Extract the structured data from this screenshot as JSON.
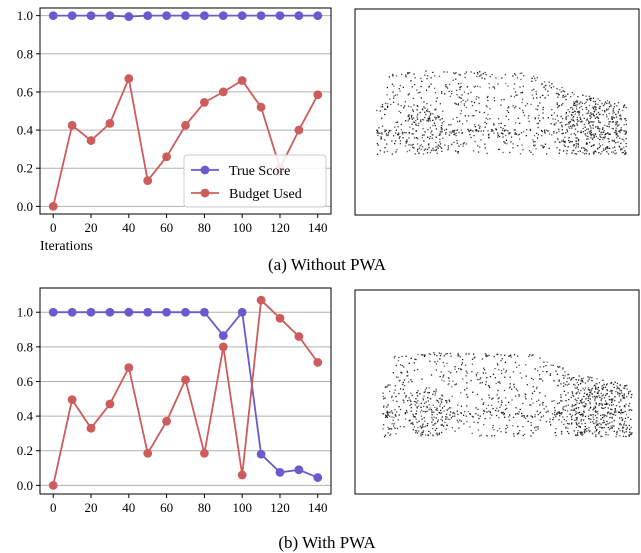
{
  "colors": {
    "true_score": "#6a5acd",
    "budget_used": "#cd5c5c",
    "grid": "#b0b0b0"
  },
  "captions": {
    "a": "(a) Without PWA",
    "b": "(b) With PWA"
  },
  "chart_data": [
    {
      "type": "line",
      "xlabel": "Iterations",
      "ylabel": "",
      "x": [
        0,
        10,
        20,
        30,
        40,
        50,
        60,
        70,
        80,
        90,
        100,
        110,
        120,
        130,
        140
      ],
      "xticks": [
        0,
        20,
        40,
        60,
        80,
        100,
        120,
        140
      ],
      "yticks": [
        0.0,
        0.2,
        0.4,
        0.6,
        0.8,
        1.0
      ],
      "yticklabels": [
        "0.0",
        "0.2",
        "0.4",
        "0.6",
        "0.8",
        "1.0"
      ],
      "xlim": [
        -7,
        147
      ],
      "ylim": [
        -0.04,
        1.04
      ],
      "grid": "horizontal",
      "legend": {
        "placement": "lower-right"
      },
      "series": [
        {
          "name": "True Score",
          "color": "#6a5acd",
          "values": [
            1.0,
            1.0,
            1.0,
            1.0,
            0.995,
            1.0,
            1.0,
            1.0,
            1.0,
            1.0,
            1.0,
            1.0,
            1.0,
            1.0,
            1.0
          ]
        },
        {
          "name": "Budget Used",
          "color": "#cd5c5c",
          "values": [
            0.0,
            0.425,
            0.345,
            0.435,
            0.67,
            0.135,
            0.26,
            0.425,
            0.545,
            0.6,
            0.66,
            0.52,
            0.2,
            0.4,
            0.585
          ]
        }
      ]
    },
    {
      "type": "line",
      "xlabel": "",
      "ylabel": "",
      "x": [
        0,
        10,
        20,
        30,
        40,
        50,
        60,
        70,
        80,
        90,
        100,
        110,
        120,
        130,
        140
      ],
      "xticks": [
        0,
        20,
        40,
        60,
        80,
        100,
        120,
        140
      ],
      "yticks": [
        0.0,
        0.2,
        0.4,
        0.6,
        0.8,
        1.0
      ],
      "yticklabels": [
        "0.0",
        "0.2",
        "0.4",
        "0.6",
        "0.8",
        "1.0"
      ],
      "xlim": [
        -7,
        147
      ],
      "ylim": [
        -0.05,
        1.14
      ],
      "grid": "horizontal",
      "series": [
        {
          "name": "True Score",
          "color": "#6a5acd",
          "values": [
            1.0,
            1.0,
            1.0,
            1.0,
            1.0,
            1.0,
            1.0,
            1.0,
            1.0,
            0.865,
            1.0,
            0.18,
            0.075,
            0.09,
            0.045
          ]
        },
        {
          "name": "Budget Used",
          "color": "#cd5c5c",
          "values": [
            0.0,
            0.495,
            0.33,
            0.47,
            0.68,
            0.185,
            0.37,
            0.61,
            0.185,
            0.8,
            0.06,
            1.07,
            0.965,
            0.86,
            0.71
          ]
        }
      ]
    }
  ]
}
